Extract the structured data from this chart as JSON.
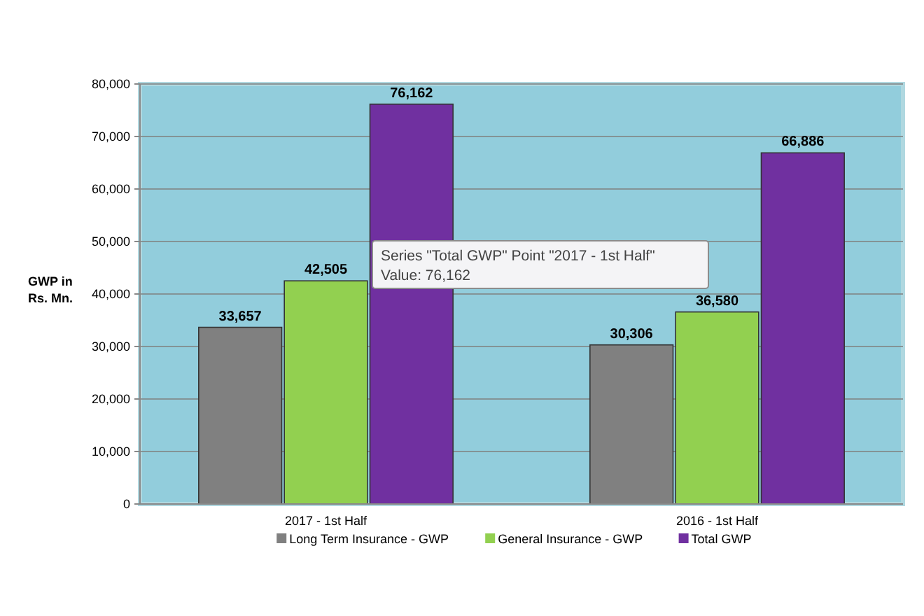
{
  "chart_data": {
    "type": "bar",
    "ylabel": "GWP in Rs. Mn.",
    "categories": [
      "2017 - 1st Half",
      "2016 - 1st Half"
    ],
    "series": [
      {
        "name": "Long Term Insurance - GWP",
        "color": "#808080",
        "values": [
          33657,
          30306
        ],
        "value_labels": [
          "33,657",
          "30,306"
        ]
      },
      {
        "name": "General Insurance - GWP",
        "color": "#92d050",
        "values": [
          42505,
          36580
        ],
        "value_labels": [
          "42,505",
          "36,580"
        ]
      },
      {
        "name": "Total GWP",
        "color": "#7030a0",
        "values": [
          76162,
          66886
        ],
        "value_labels": [
          "76,162",
          "66,886"
        ]
      }
    ],
    "ylim": [
      0,
      80000
    ],
    "yticks": [
      {
        "value": 0,
        "label": "0"
      },
      {
        "value": 10000,
        "label": "10,000"
      },
      {
        "value": 20000,
        "label": "20,000"
      },
      {
        "value": 30000,
        "label": "30,000"
      },
      {
        "value": 40000,
        "label": "40,000"
      },
      {
        "value": 50000,
        "label": "50,000"
      },
      {
        "value": 60000,
        "label": "60,000"
      },
      {
        "value": 70000,
        "label": "70,000"
      },
      {
        "value": 80000,
        "label": "80,000"
      }
    ],
    "grid": "y",
    "legend": "bottom",
    "annotations": [
      "Series \"Total GWP\" Point \"2017 - 1st Half\"",
      "Value: 76,162"
    ]
  }
}
